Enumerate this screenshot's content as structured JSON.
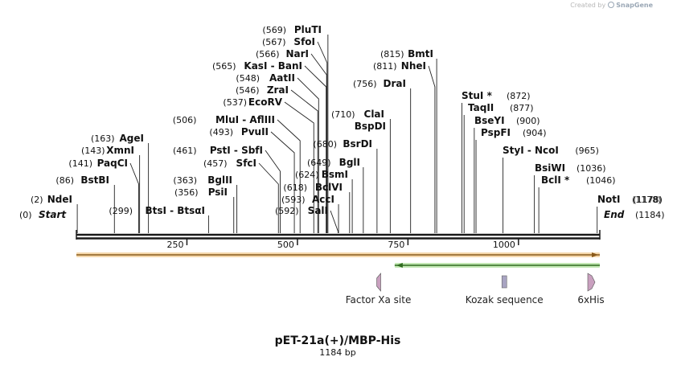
{
  "credit": {
    "prefix": "Created by",
    "brand": "SnapGene"
  },
  "map": {
    "name": "pET-21a(+)/MBP-His",
    "length_label": "1184 bp",
    "length": 1184
  },
  "ends": {
    "start": {
      "label": "Start",
      "pos": 0
    },
    "end": {
      "label": "End",
      "pos": 1184
    }
  },
  "ticks": [
    250,
    500,
    750,
    1000
  ],
  "sites": [
    {
      "name": "NdeI",
      "pos": 2
    },
    {
      "name": "BstBI",
      "pos": 86
    },
    {
      "name": "PaqCI",
      "pos": 141
    },
    {
      "name": "XmnI",
      "pos": 143
    },
    {
      "name": "AgeI",
      "pos": 163
    },
    {
      "name": "BtsI - BtsαI",
      "pos": 299
    },
    {
      "name": "PsiI",
      "pos": 356
    },
    {
      "name": "BglII",
      "pos": 363
    },
    {
      "name": "SfcI",
      "pos": 457
    },
    {
      "name": "PstI - SbfI",
      "pos": 461
    },
    {
      "name": "PvuII",
      "pos": 493
    },
    {
      "name": "MluI - AflIII",
      "pos": 506
    },
    {
      "name": "EcoRV",
      "pos": 537
    },
    {
      "name": "ZraI",
      "pos": 546
    },
    {
      "name": "AatII",
      "pos": 548
    },
    {
      "name": "KasI - BanI",
      "pos": 565
    },
    {
      "name": "NarI",
      "pos": 566
    },
    {
      "name": "SfoI",
      "pos": 567
    },
    {
      "name": "PluTI",
      "pos": 569
    },
    {
      "name": "SalI",
      "pos": 592
    },
    {
      "name": "AccI",
      "pos": 593
    },
    {
      "name": "BclVI",
      "pos": 618
    },
    {
      "name": "BsmI",
      "pos": 624
    },
    {
      "name": "BglI",
      "pos": 649
    },
    {
      "name": "BsrDI",
      "pos": 680
    },
    {
      "name": "BspDI",
      "pos": 710
    },
    {
      "name": "ClaI",
      "pos": 710
    },
    {
      "name": "DraI",
      "pos": 756
    },
    {
      "name": "NheI",
      "pos": 811
    },
    {
      "name": "BmtI",
      "pos": 815
    },
    {
      "name": "StuI *",
      "pos": 872
    },
    {
      "name": "TaqII",
      "pos": 877
    },
    {
      "name": "BseYI",
      "pos": 900
    },
    {
      "name": "PspFI",
      "pos": 904
    },
    {
      "name": "StyI - NcoI",
      "pos": 965
    },
    {
      "name": "BsiWI",
      "pos": 1036
    },
    {
      "name": "BclI *",
      "pos": 1046
    },
    {
      "name": "NotI",
      "pos": 1178
    }
  ],
  "features": [
    {
      "name": "Factor Xa site",
      "pos": 683,
      "shape": "arrow-left",
      "color": "#c9a0bf"
    },
    {
      "name": "Kozak sequence",
      "pos": 968,
      "shape": "box",
      "color": "#a8a4c2"
    },
    {
      "name": "6xHis",
      "pos": 1164,
      "shape": "arrow-right",
      "color": "#c9a0bf"
    }
  ],
  "orfs": [
    {
      "from": 0,
      "to": 1184,
      "dir": "forward",
      "color": "#e8a94a",
      "arrow": "#8a5a1c"
    },
    {
      "from": 720,
      "to": 1184,
      "dir": "reverse",
      "color": "#7acc5a",
      "arrow": "#2f6b1f"
    }
  ],
  "colors": {
    "backbone": "#1a1a1a",
    "leader": "#222222"
  }
}
